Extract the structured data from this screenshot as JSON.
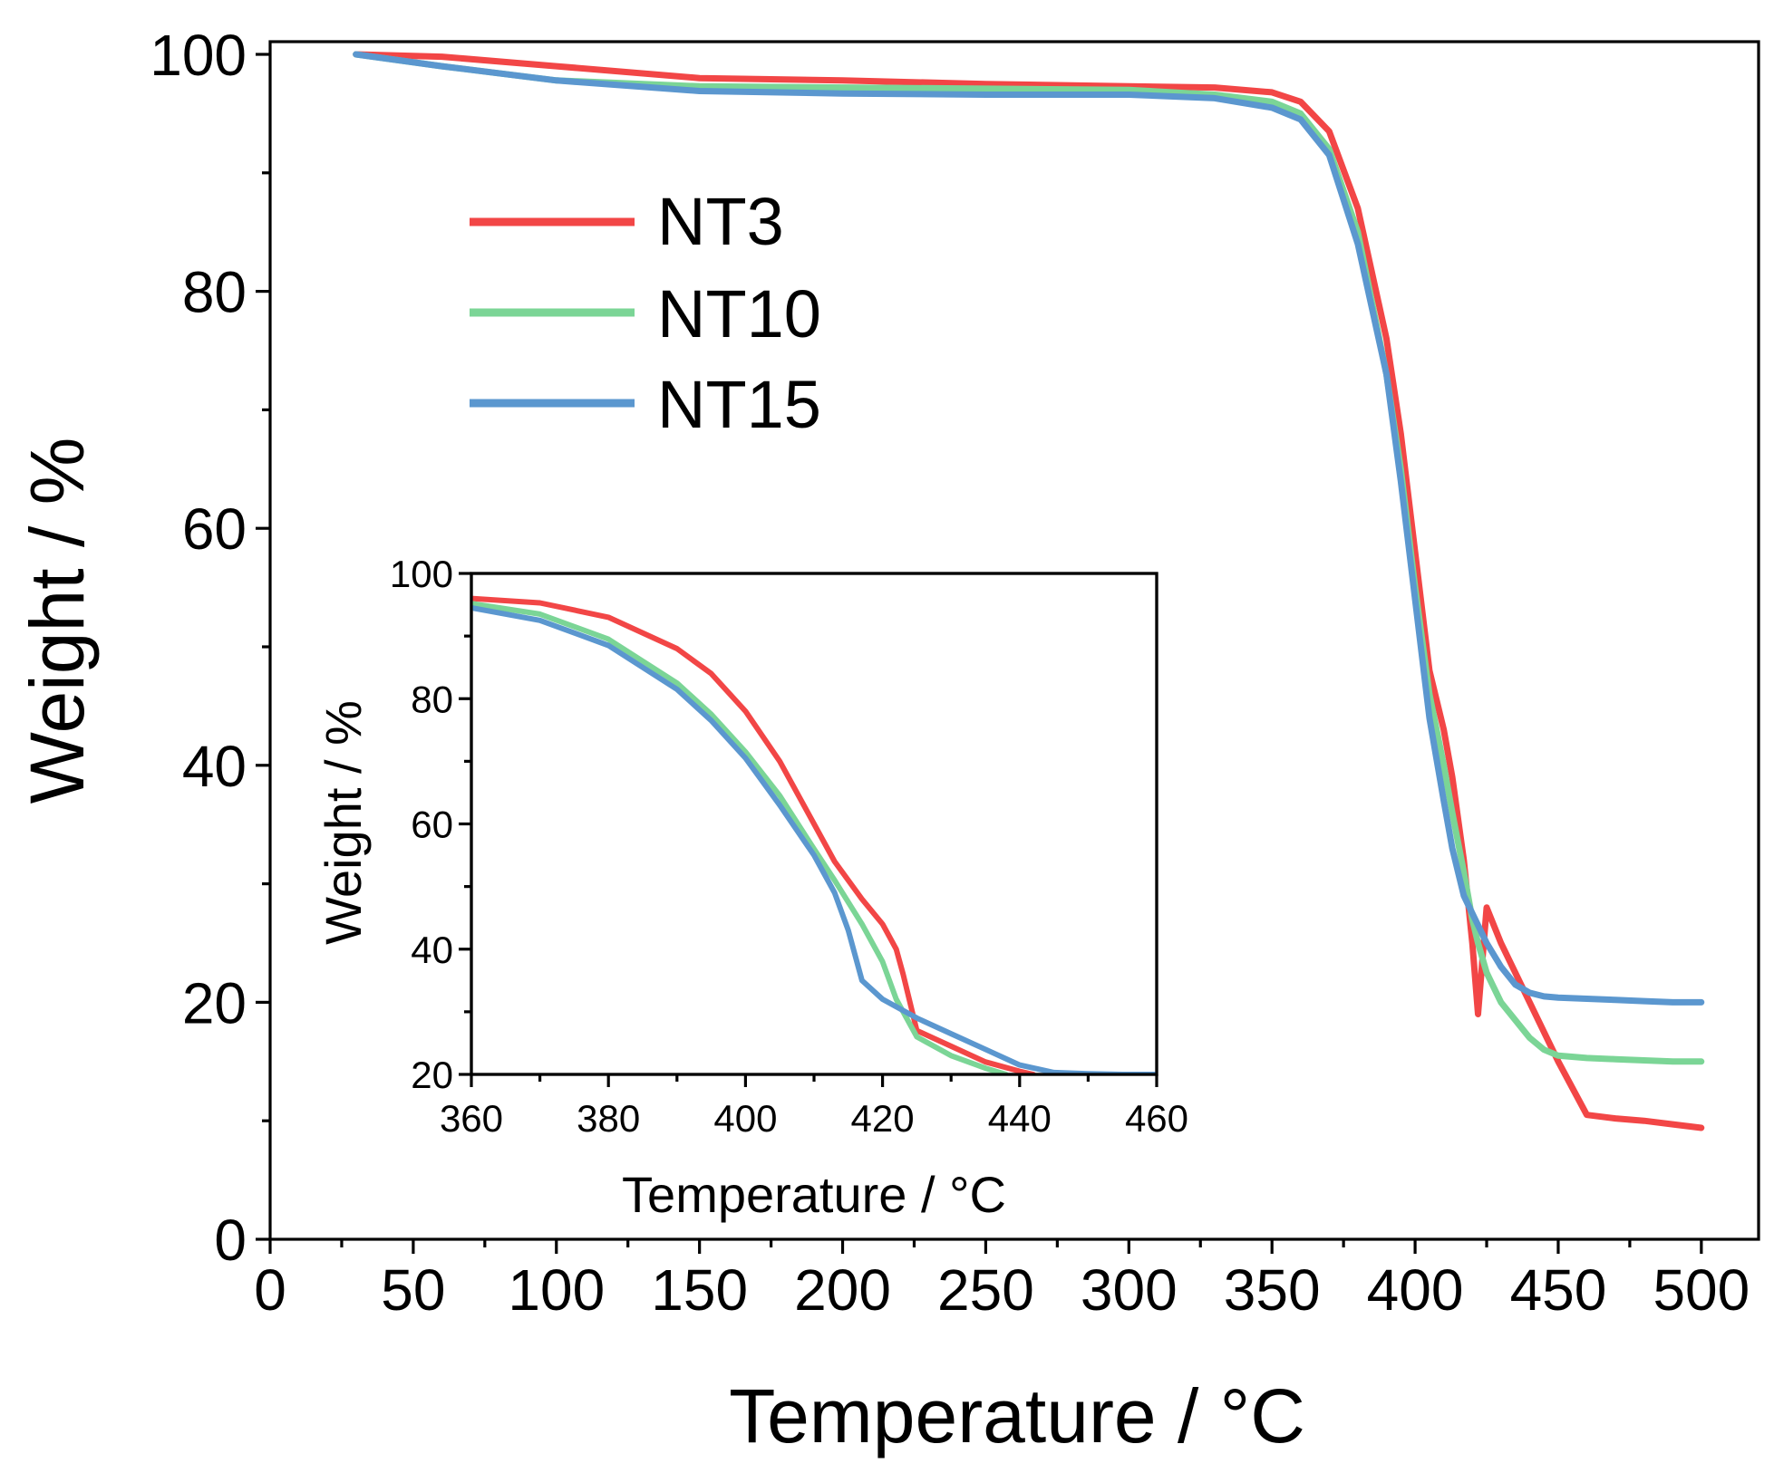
{
  "chart_data": [
    {
      "id": "main",
      "type": "line",
      "title": "",
      "xlabel": "Temperature / °C",
      "ylabel": "Weight / %",
      "xlim": [
        0,
        520
      ],
      "ylim": [
        0,
        100
      ],
      "xticks": [
        0,
        50,
        100,
        150,
        200,
        250,
        300,
        350,
        400,
        450,
        500
      ],
      "xtick_labels": [
        "0",
        "50",
        "100",
        "150",
        "200",
        "250",
        "300",
        "350",
        "400",
        "450",
        "500"
      ],
      "yticks": [
        0,
        20,
        40,
        60,
        80,
        100
      ],
      "ytick_labels": [
        "0",
        "20",
        "40",
        "60",
        "80",
        "100"
      ],
      "grid": false,
      "legend_position": "top-left",
      "series": [
        {
          "name": "NT3",
          "color": "#f24646",
          "x": [
            30,
            60,
            100,
            150,
            200,
            250,
            300,
            330,
            350,
            360,
            370,
            380,
            390,
            395,
            400,
            405,
            410,
            413,
            417,
            420,
            422,
            425,
            430,
            440,
            450,
            460,
            470,
            480,
            490,
            500
          ],
          "y": [
            100,
            99.8,
            99,
            98,
            97.8,
            97.5,
            97.3,
            97.2,
            96.8,
            96,
            93.5,
            87,
            76,
            68,
            58,
            48,
            43,
            39,
            32,
            25,
            19,
            28,
            25,
            20,
            15,
            10.5,
            10.2,
            10,
            9.7,
            9.4
          ]
        },
        {
          "name": "NT10",
          "color": "#7bd596",
          "x": [
            30,
            60,
            100,
            150,
            200,
            250,
            300,
            330,
            350,
            360,
            370,
            380,
            390,
            395,
            400,
            405,
            410,
            413,
            417,
            420,
            422,
            425,
            430,
            440,
            445,
            450,
            460,
            470,
            480,
            490,
            500
          ],
          "y": [
            100,
            99,
            97.8,
            97.3,
            97.2,
            97.1,
            97,
            96.6,
            96,
            95,
            92,
            85,
            73,
            65,
            55,
            46,
            40,
            36,
            31,
            27,
            25,
            22.5,
            20,
            17,
            16,
            15.5,
            15.3,
            15.2,
            15.1,
            15,
            15
          ]
        },
        {
          "name": "NT15",
          "color": "#5b97cf",
          "x": [
            30,
            60,
            100,
            150,
            200,
            250,
            300,
            330,
            350,
            360,
            370,
            380,
            390,
            395,
            400,
            405,
            410,
            413,
            417,
            420,
            425,
            430,
            435,
            440,
            445,
            450,
            460,
            470,
            480,
            490,
            500
          ],
          "y": [
            100,
            99,
            97.8,
            96.9,
            96.7,
            96.6,
            96.6,
            96.3,
            95.5,
            94.5,
            91.5,
            84,
            73,
            64,
            54,
            44,
            37,
            33,
            29,
            27.5,
            25,
            23,
            21.5,
            20.8,
            20.5,
            20.4,
            20.3,
            20.2,
            20.1,
            20,
            20
          ]
        }
      ]
    },
    {
      "id": "inset",
      "type": "line",
      "title": "",
      "xlabel": "Temperature / °C",
      "ylabel": "Weight / %",
      "xlim": [
        360,
        460
      ],
      "ylim": [
        20,
        100
      ],
      "xticks": [
        360,
        380,
        400,
        420,
        440,
        460
      ],
      "xtick_labels": [
        "360",
        "380",
        "400",
        "420",
        "440",
        "460"
      ],
      "yticks": [
        20,
        40,
        60,
        80,
        100
      ],
      "ytick_labels": [
        "20",
        "40",
        "60",
        "80",
        "100"
      ],
      "grid": false,
      "series": [
        {
          "name": "NT3",
          "color": "#f24646",
          "x": [
            360,
            370,
            380,
            390,
            395,
            400,
            405,
            410,
            413,
            417,
            420,
            422,
            423,
            425,
            430,
            435,
            440,
            442
          ],
          "y": [
            96,
            95.3,
            93,
            88,
            84,
            78,
            70,
            60,
            54,
            48,
            44,
            40,
            36,
            27,
            24.5,
            22,
            20.5,
            20
          ]
        },
        {
          "name": "NT10",
          "color": "#7bd596",
          "x": [
            360,
            370,
            380,
            390,
            395,
            400,
            405,
            410,
            413,
            417,
            420,
            422,
            425,
            430,
            435,
            438
          ],
          "y": [
            95.2,
            93.5,
            89.5,
            82.5,
            77.5,
            71.5,
            64.5,
            56,
            51,
            44,
            38,
            32,
            26,
            23,
            21,
            20
          ]
        },
        {
          "name": "NT15",
          "color": "#5b97cf",
          "x": [
            360,
            370,
            380,
            390,
            395,
            400,
            405,
            410,
            413,
            415,
            417,
            420,
            425,
            430,
            435,
            440,
            445,
            450,
            455,
            460
          ],
          "y": [
            94.5,
            92.5,
            88.5,
            81.5,
            76.5,
            70.5,
            63,
            55,
            49,
            43,
            35,
            32,
            29,
            26.5,
            24,
            21.5,
            20.3,
            20.1,
            20,
            20
          ]
        }
      ]
    }
  ]
}
